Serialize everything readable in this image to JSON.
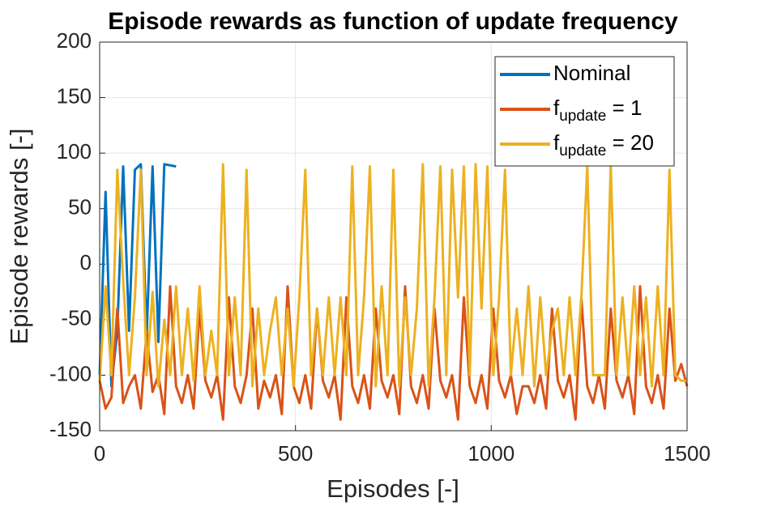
{
  "chart_data": {
    "type": "line",
    "title": "Episode rewards as function of update frequency",
    "xlabel": "Episodes [-]",
    "ylabel": "Episode rewards [-]",
    "x": [
      0,
      15,
      30,
      45,
      60,
      75,
      90,
      105,
      120,
      135,
      150,
      165,
      180,
      195,
      210,
      225,
      240,
      255,
      270,
      285,
      300,
      315,
      330,
      345,
      360,
      375,
      390,
      405,
      420,
      435,
      450,
      465,
      480,
      495,
      510,
      525,
      540,
      555,
      570,
      585,
      600,
      615,
      630,
      645,
      660,
      675,
      690,
      705,
      720,
      735,
      750,
      765,
      780,
      795,
      810,
      825,
      840,
      855,
      870,
      885,
      900,
      915,
      930,
      945,
      960,
      975,
      990,
      1005,
      1020,
      1035,
      1050,
      1065,
      1080,
      1095,
      1110,
      1125,
      1140,
      1155,
      1170,
      1185,
      1200,
      1215,
      1230,
      1245,
      1260,
      1275,
      1290,
      1305,
      1320,
      1335,
      1350,
      1365,
      1380,
      1395,
      1410,
      1425,
      1440,
      1455,
      1470,
      1485,
      1500
    ],
    "series": [
      {
        "name": "Nominal",
        "color": "#0072bd",
        "values": [
          -100,
          65,
          -110,
          -60,
          88,
          -60,
          85,
          90,
          -65,
          88,
          -70,
          90,
          89,
          88,
          null,
          null,
          null,
          null,
          null,
          null,
          null,
          null,
          null,
          null,
          null,
          null,
          null,
          null,
          null,
          null,
          null,
          null,
          null,
          null,
          null,
          null,
          null,
          null,
          null,
          null,
          null,
          null,
          null,
          null,
          null,
          null,
          null,
          null,
          null,
          null,
          null,
          null,
          null,
          null,
          null,
          null,
          null,
          null,
          null,
          null,
          null,
          null,
          null,
          null,
          null,
          null,
          null,
          null,
          null,
          null,
          null,
          null,
          null,
          null,
          null,
          null,
          null,
          null,
          null,
          null,
          null,
          null,
          null,
          null,
          null,
          null,
          null,
          null,
          null,
          null,
          null,
          null,
          null,
          null,
          null,
          null,
          null,
          null,
          null,
          null,
          null
        ]
      },
      {
        "name": "fupdate = 1",
        "color": "#d95319",
        "values": [
          -105,
          -130,
          -120,
          -40,
          -125,
          -110,
          -100,
          -130,
          -60,
          -115,
          -100,
          -135,
          -20,
          -110,
          -125,
          -100,
          -130,
          -40,
          -105,
          -120,
          -100,
          -140,
          -30,
          -110,
          -125,
          -100,
          -40,
          -130,
          -105,
          -120,
          -100,
          -135,
          -20,
          -110,
          -125,
          -100,
          -130,
          -40,
          -105,
          -120,
          -100,
          -140,
          -30,
          -110,
          -125,
          -100,
          -130,
          -40,
          -105,
          -120,
          -100,
          -135,
          -20,
          -110,
          -125,
          -100,
          -130,
          -40,
          -105,
          -120,
          -100,
          -140,
          -30,
          -110,
          -125,
          -100,
          -130,
          -40,
          -105,
          -120,
          -100,
          -135,
          -110,
          -110,
          -125,
          -100,
          -130,
          -40,
          -105,
          -120,
          -100,
          -140,
          -30,
          -110,
          -125,
          -100,
          -130,
          -40,
          -105,
          -120,
          -100,
          -135,
          -20,
          -110,
          -125,
          -100,
          -130,
          -40,
          -105,
          -90,
          -110
        ]
      },
      {
        "name": "fupdate = 20",
        "color": "#edb120",
        "values": [
          -105,
          -20,
          -100,
          85,
          -15,
          -100,
          -30,
          85,
          -100,
          -25,
          -110,
          -50,
          -100,
          -20,
          -100,
          -40,
          -105,
          -20,
          -100,
          -60,
          -100,
          90,
          -100,
          -30,
          -100,
          85,
          -110,
          -40,
          -100,
          -60,
          -30,
          -100,
          -40,
          -110,
          -30,
          85,
          -100,
          -40,
          -100,
          -30,
          -100,
          -30,
          -100,
          88,
          -100,
          -30,
          88,
          -110,
          -20,
          -100,
          85,
          -110,
          -30,
          -100,
          -40,
          90,
          -110,
          -30,
          88,
          -100,
          85,
          -30,
          88,
          -100,
          90,
          -40,
          88,
          -100,
          -30,
          85,
          -100,
          -40,
          -100,
          -20,
          -110,
          -30,
          -100,
          -60,
          -40,
          -100,
          -30,
          -100,
          -30,
          88,
          -100,
          -100,
          -100,
          90,
          -100,
          -30,
          -100,
          -20,
          -100,
          -30,
          -110,
          -20,
          -100,
          85,
          -100,
          -105,
          -105
        ]
      }
    ],
    "xlim": [
      0,
      1500
    ],
    "xticks": [
      0,
      500,
      1000,
      1500
    ],
    "ylim": [
      -150,
      200
    ],
    "yticks": [
      -150,
      -100,
      -50,
      0,
      50,
      100,
      150,
      200
    ],
    "grid": true,
    "legend": "top-right"
  }
}
